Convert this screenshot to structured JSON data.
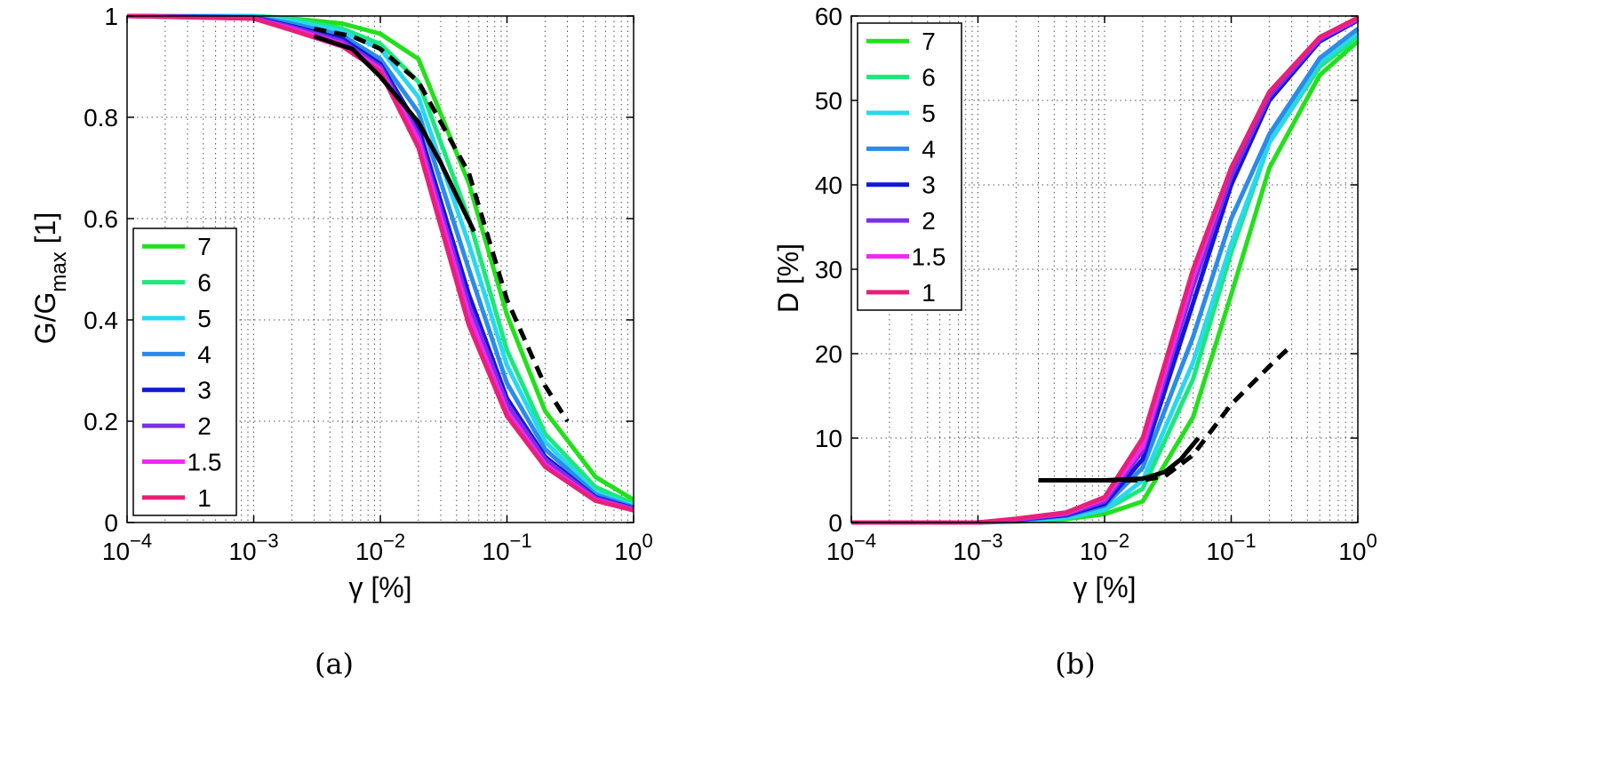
{
  "chart_data": [
    {
      "type": "line",
      "caption": "(a)",
      "xlabel": "γ [%]",
      "ylabel": "G/G_max [1]",
      "ylabel_main": "G/G",
      "ylabel_sub": "max",
      "ylabel_tail": " [1]",
      "xscale": "log",
      "xlim": [
        0.0001,
        1
      ],
      "ylim": [
        0,
        1
      ],
      "x_ticks": [
        {
          "base": "10",
          "exp": "−4"
        },
        {
          "base": "10",
          "exp": "−3"
        },
        {
          "base": "10",
          "exp": "−2"
        },
        {
          "base": "10",
          "exp": "−1"
        },
        {
          "base": "10",
          "exp": "0"
        }
      ],
      "y_ticks": [
        "0",
        "0.2",
        "0.4",
        "0.6",
        "0.8",
        "1"
      ],
      "grid": true,
      "legend_position": "bottom-left",
      "x": [
        0.0001,
        0.001,
        0.002,
        0.005,
        0.01,
        0.02,
        0.05,
        0.1,
        0.2,
        0.5,
        1
      ],
      "series": [
        {
          "name": "7",
          "color": "#22e01c",
          "values": [
            1,
            1,
            0.995,
            0.985,
            0.965,
            0.915,
            0.67,
            0.41,
            0.22,
            0.09,
            0.045
          ]
        },
        {
          "name": "6",
          "color": "#1ce87a",
          "values": [
            1,
            1,
            0.995,
            0.975,
            0.945,
            0.87,
            0.6,
            0.34,
            0.175,
            0.07,
            0.037
          ]
        },
        {
          "name": "5",
          "color": "#28d8f0",
          "values": [
            1,
            1,
            0.99,
            0.97,
            0.935,
            0.84,
            0.55,
            0.31,
            0.16,
            0.06,
            0.033
          ]
        },
        {
          "name": "4",
          "color": "#2a8ce8",
          "values": [
            1,
            0.998,
            0.985,
            0.962,
            0.915,
            0.81,
            0.5,
            0.275,
            0.145,
            0.055,
            0.03
          ]
        },
        {
          "name": "3",
          "color": "#1018d8",
          "values": [
            1,
            0.997,
            0.98,
            0.955,
            0.905,
            0.78,
            0.45,
            0.245,
            0.13,
            0.05,
            0.028
          ]
        },
        {
          "name": "2",
          "color": "#7a30e8",
          "values": [
            1,
            0.996,
            0.978,
            0.95,
            0.9,
            0.765,
            0.43,
            0.235,
            0.125,
            0.048,
            0.027
          ]
        },
        {
          "name": "1.5",
          "color": "#f028f0",
          "values": [
            1,
            0.995,
            0.975,
            0.945,
            0.895,
            0.755,
            0.41,
            0.22,
            0.115,
            0.045,
            0.025
          ]
        },
        {
          "name": "1",
          "color": "#e8207a",
          "values": [
            1,
            0.995,
            0.972,
            0.94,
            0.89,
            0.74,
            0.39,
            0.21,
            0.11,
            0.043,
            0.024
          ]
        }
      ],
      "extra_lines": [
        {
          "style": "solid",
          "color": "#000000",
          "x": [
            0.003,
            0.006,
            0.01,
            0.02,
            0.03,
            0.04,
            0.055
          ],
          "y": [
            0.96,
            0.935,
            0.88,
            0.79,
            0.71,
            0.645,
            0.575
          ]
        },
        {
          "style": "dashed",
          "color": "#000000",
          "x": [
            0.003,
            0.006,
            0.01,
            0.02,
            0.05,
            0.1,
            0.2,
            0.3
          ],
          "y": [
            0.975,
            0.96,
            0.935,
            0.87,
            0.69,
            0.44,
            0.27,
            0.2
          ]
        }
      ]
    },
    {
      "type": "line",
      "caption": "(b)",
      "xlabel": "γ [%]",
      "ylabel": "D [%]",
      "xscale": "log",
      "xlim": [
        0.0001,
        1
      ],
      "ylim": [
        0,
        60
      ],
      "x_ticks": [
        {
          "base": "10",
          "exp": "−4"
        },
        {
          "base": "10",
          "exp": "−3"
        },
        {
          "base": "10",
          "exp": "−2"
        },
        {
          "base": "10",
          "exp": "−1"
        },
        {
          "base": "10",
          "exp": "0"
        }
      ],
      "y_ticks": [
        "0",
        "10",
        "20",
        "30",
        "40",
        "50",
        "60"
      ],
      "grid": true,
      "legend_position": "top-left",
      "x": [
        0.0001,
        0.001,
        0.002,
        0.005,
        0.01,
        0.02,
        0.05,
        0.1,
        0.2,
        0.5,
        1
      ],
      "series": [
        {
          "name": "7",
          "color": "#22e01c",
          "values": [
            0,
            0,
            0.1,
            0.4,
            1,
            2.5,
            12.5,
            27,
            42,
            53,
            57
          ]
        },
        {
          "name": "6",
          "color": "#1ce87a",
          "values": [
            0,
            0,
            0.15,
            0.5,
            1.5,
            4,
            17,
            32,
            45,
            54,
            57.5
          ]
        },
        {
          "name": "5",
          "color": "#28d8f0",
          "values": [
            0,
            0,
            0.2,
            0.6,
            1.5,
            5,
            19,
            33,
            45,
            54.5,
            58
          ]
        },
        {
          "name": "4",
          "color": "#2a8ce8",
          "values": [
            0,
            0,
            0.25,
            0.8,
            2,
            6.5,
            22,
            36,
            46,
            55,
            58.5
          ]
        },
        {
          "name": "3",
          "color": "#1018d8",
          "values": [
            0,
            0,
            0.3,
            0.9,
            2.2,
            7.5,
            26,
            40,
            50,
            57,
            59.5
          ]
        },
        {
          "name": "2",
          "color": "#7a30e8",
          "values": [
            0,
            0,
            0.35,
            1,
            2.5,
            8.5,
            28,
            41,
            50.5,
            57.2,
            59.6
          ]
        },
        {
          "name": "1.5",
          "color": "#f028f0",
          "values": [
            0,
            0,
            0.4,
            1.1,
            2.8,
            9,
            29,
            42,
            51,
            57.4,
            59.7
          ]
        },
        {
          "name": "1",
          "color": "#e8207a",
          "values": [
            0,
            0,
            0.45,
            1.2,
            3,
            10,
            30,
            42,
            51,
            57.5,
            59.8
          ]
        }
      ],
      "extra_lines": [
        {
          "style": "solid",
          "color": "#000000",
          "x": [
            0.003,
            0.01,
            0.02,
            0.03,
            0.04,
            0.055
          ],
          "y": [
            5,
            5,
            5.2,
            6,
            7.5,
            10
          ]
        },
        {
          "style": "dashed",
          "color": "#000000",
          "x": [
            0.01,
            0.02,
            0.03,
            0.05,
            0.1,
            0.2,
            0.3
          ],
          "y": [
            5,
            5,
            5.5,
            8,
            14,
            18.5,
            21
          ]
        }
      ]
    }
  ]
}
